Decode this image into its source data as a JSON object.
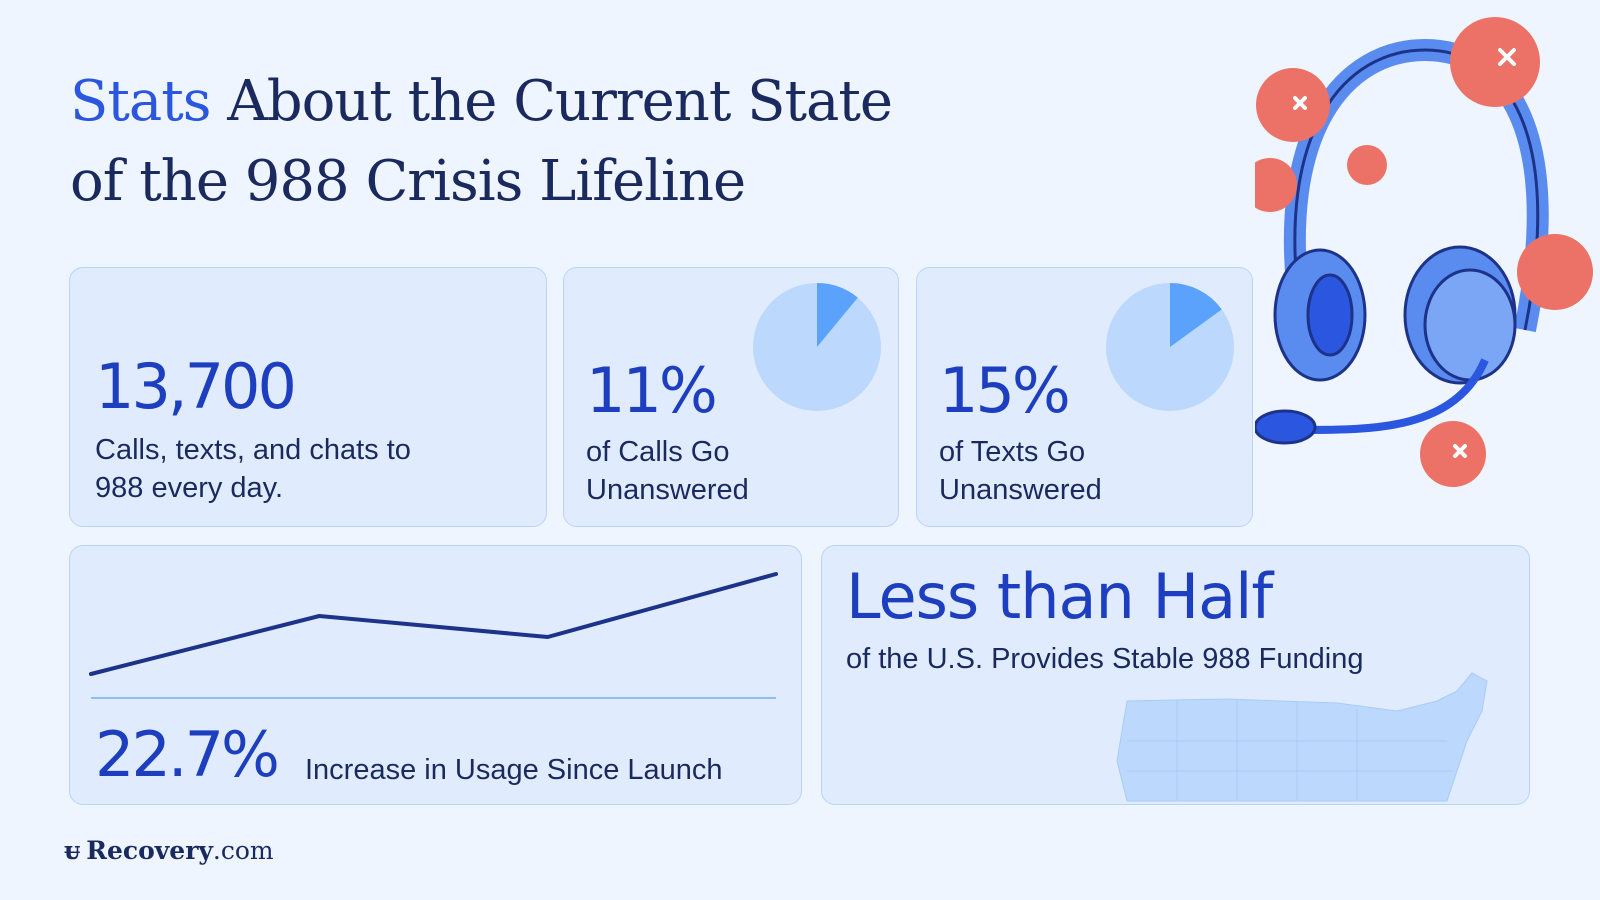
{
  "title": {
    "accent": "Stats",
    "line1_rest": " About the Current State",
    "line2": "of the 988 Crisis Lifeline"
  },
  "cards": [
    {
      "value": "13,700",
      "label_line1": "Calls, texts, and chats to",
      "label_line2": "988 every day."
    },
    {
      "value": "11%",
      "label_line1": "of Calls Go",
      "label_line2": "Unanswered",
      "pie_fraction": 0.11
    },
    {
      "value": "15%",
      "label_line1": "of Texts Go",
      "label_line2": "Unanswered",
      "pie_fraction": 0.15
    },
    {
      "value": "22.7%",
      "label": "Increase in Usage Since Launch"
    },
    {
      "value": "Less than Half",
      "label": "of the U.S. Provides Stable 988 Funding"
    }
  ],
  "chart_data": {
    "type": "line",
    "trend": [
      0,
      58,
      37,
      100
    ],
    "grid": false
  },
  "colors": {
    "accent": "#2a56e0",
    "stat": "#1d3fbf",
    "pie_bg": "#bcd8fd",
    "pie_slice": "#5aa2fb",
    "missed_call": "#ec7267"
  },
  "icons": [
    "headset-icon",
    "missed-call-icon",
    "us-map-icon",
    "recovery-logo-icon"
  ],
  "brand": {
    "name": "Recovery",
    "suffix": ".com"
  }
}
